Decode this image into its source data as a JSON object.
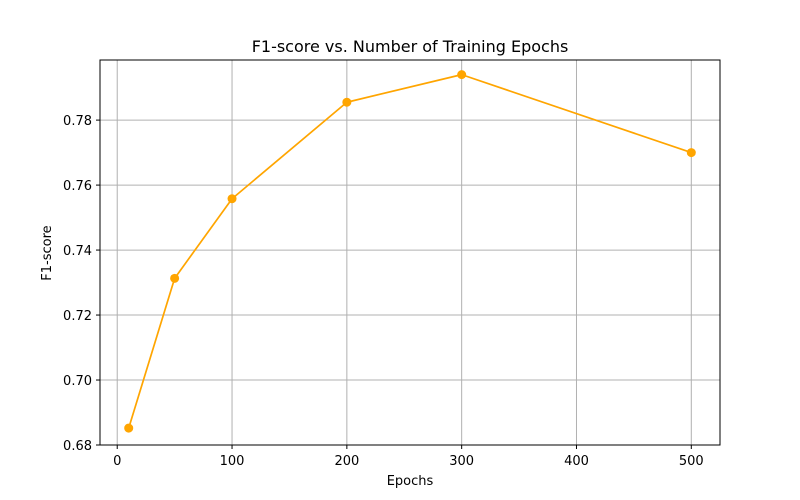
{
  "chart_data": {
    "type": "line",
    "title": "F1-score vs. Number of Training Epochs",
    "xlabel": "Epochs",
    "ylabel": "F1-score",
    "x": [
      10,
      50,
      100,
      200,
      300,
      500
    ],
    "series": [
      {
        "values": [
          0.6852,
          0.7313,
          0.7558,
          0.7855,
          0.794,
          0.77
        ],
        "color": "#ffa500",
        "marker": "circle"
      }
    ],
    "xlim": [
      -15,
      525
    ],
    "ylim": [
      0.68,
      0.7985
    ],
    "xticks": [
      0,
      100,
      200,
      300,
      400,
      500
    ],
    "xtick_labels": [
      "0",
      "100",
      "200",
      "300",
      "400",
      "500"
    ],
    "yticks": [
      0.68,
      0.7,
      0.72,
      0.74,
      0.76,
      0.78
    ],
    "ytick_labels": [
      "0.68",
      "0.70",
      "0.72",
      "0.74",
      "0.76",
      "0.78"
    ],
    "grid": true
  }
}
